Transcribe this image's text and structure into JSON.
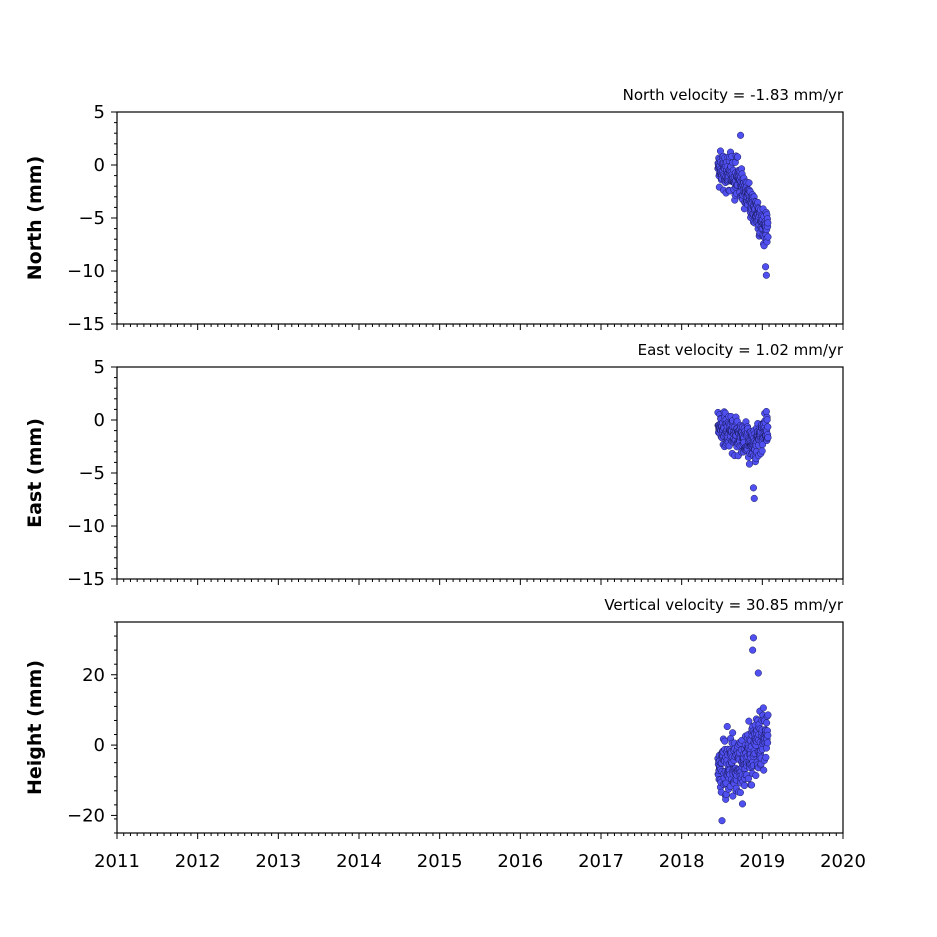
{
  "chart_data": [
    {
      "type": "scatter",
      "title": "North velocity = -1.83 mm/yr",
      "ylabel": "North (mm)",
      "xlim": [
        2011,
        2020
      ],
      "ylim": [
        -15,
        5
      ],
      "yticks": [
        -15,
        -10,
        -5,
        0,
        5
      ],
      "ytick_labels": [
        "−15",
        "−10",
        "−5",
        "0",
        "5"
      ],
      "marker_color": "#5050f0",
      "series": [
        {
          "points": []
        }
      ]
    },
    {
      "type": "scatter",
      "title": "East velocity = 1.02 mm/yr",
      "ylabel": "East (mm)",
      "xlim": [
        2011,
        2020
      ],
      "ylim": [
        -15,
        5
      ],
      "yticks": [
        -15,
        -10,
        -5,
        0,
        5
      ],
      "ytick_labels": [
        "−15",
        "−10",
        "−5",
        "0",
        "5"
      ],
      "marker_color": "#5050f0",
      "series": [
        {
          "points": []
        }
      ]
    },
    {
      "type": "scatter",
      "title": "Vertical velocity = 30.85 mm/yr",
      "ylabel": "Height (mm)",
      "xlim": [
        2011,
        2020
      ],
      "ylim": [
        -25,
        35
      ],
      "yticks": [
        -20,
        0,
        20
      ],
      "ytick_labels": [
        "−20",
        "0",
        "20"
      ],
      "xticks": [
        2011,
        2012,
        2013,
        2014,
        2015,
        2016,
        2017,
        2018,
        2019,
        2020
      ],
      "xtick_labels": [
        "2011",
        "2012",
        "2013",
        "2014",
        "2015",
        "2016",
        "2017",
        "2018",
        "2019",
        "2020"
      ],
      "marker_color": "#5050f0",
      "series": [
        {
          "points": []
        }
      ]
    }
  ]
}
